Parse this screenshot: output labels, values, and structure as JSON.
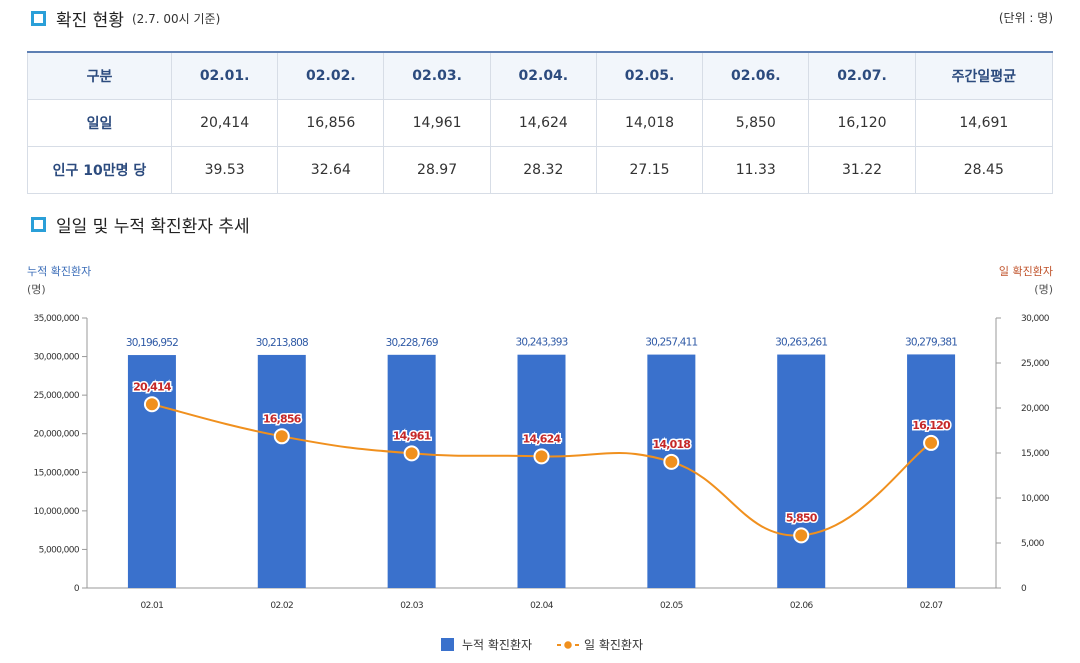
{
  "header": {
    "title": "확진 현황",
    "subtitle": "(2.7. 00시 기준)",
    "unit": "(단위 : 명)"
  },
  "table": {
    "columns": [
      "구분",
      "02.01.",
      "02.02.",
      "02.03.",
      "02.04.",
      "02.05.",
      "02.06.",
      "02.07.",
      "주간일평균"
    ],
    "rows": [
      {
        "label": "일일",
        "values": [
          "20,414",
          "16,856",
          "14,961",
          "14,624",
          "14,018",
          "5,850",
          "16,120",
          "14,691"
        ]
      },
      {
        "label": "인구 10만명 당",
        "values": [
          "39.53",
          "32.64",
          "28.97",
          "28.32",
          "27.15",
          "11.33",
          "31.22",
          "28.45"
        ]
      }
    ]
  },
  "trend": {
    "title": "일일 및 누적 확진환자 추세",
    "left_axis_title": "누적 확진환자",
    "left_axis_unit": "(명)",
    "right_axis_title": "일 확진환자",
    "right_axis_unit": "(명)"
  },
  "chart_data": {
    "type": "bar",
    "categories": [
      "02.01",
      "02.02",
      "02.03",
      "02.04",
      "02.05",
      "02.06",
      "02.07"
    ],
    "series": [
      {
        "name": "누적 확진환자",
        "type": "bar",
        "axis": "left",
        "color": "#3a71cc",
        "values": [
          30196952,
          30213808,
          30228769,
          30243393,
          30257411,
          30263261,
          30279381
        ],
        "labels": [
          "30,196,952",
          "30,213,808",
          "30,228,769",
          "30,243,393",
          "30,257,411",
          "30,263,261",
          "30,279,381"
        ]
      },
      {
        "name": "일 확진환자",
        "type": "line",
        "axis": "right",
        "color": "#f0901e",
        "values": [
          20414,
          16856,
          14961,
          14624,
          14018,
          5850,
          16120
        ],
        "labels": [
          "20,414",
          "16,856",
          "14,961",
          "14,624",
          "14,018",
          "5,850",
          "16,120"
        ]
      }
    ],
    "y_left": {
      "range": [
        0,
        35000000
      ],
      "ticks": [
        "0",
        "5,000,000",
        "10,000,000",
        "15,000,000",
        "20,000,000",
        "25,000,000",
        "30,000,000",
        "35,000,000"
      ]
    },
    "y_right": {
      "range": [
        0,
        30000
      ],
      "ticks": [
        "0",
        "5,000",
        "10,000",
        "15,000",
        "20,000",
        "25,000",
        "30,000"
      ]
    },
    "legend_position": "bottom-center",
    "grid": false
  }
}
